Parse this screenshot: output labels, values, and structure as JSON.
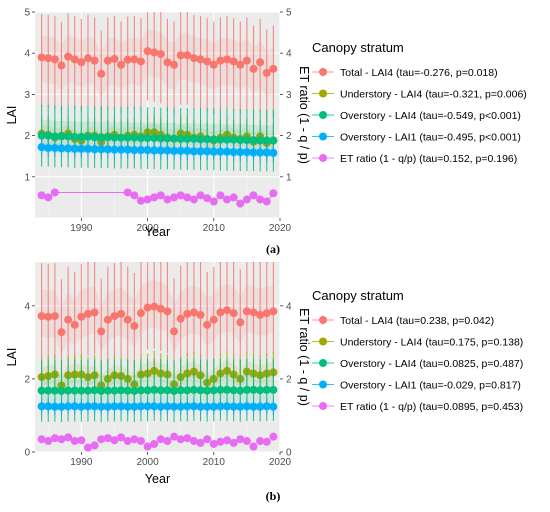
{
  "colors": {
    "total": "#f8766d",
    "understory": "#a3a500",
    "overstory_lai4": "#00bf7d",
    "overstory_lai1": "#00b0f6",
    "et_ratio": "#e76bf3",
    "panel_bg": "#ebebeb",
    "grid": "#ffffff"
  },
  "chart_data": [
    {
      "type": "scatter",
      "panel_label": "(a)",
      "xlabel": "Year",
      "ylabel": "LAI",
      "y2label": "ET ratio  (1 - q / p)",
      "xlim": [
        1983,
        2020
      ],
      "ylim": [
        0,
        5
      ],
      "xticks": [
        1990,
        2000,
        2010,
        2020
      ],
      "yticks": [
        1,
        2,
        3,
        4,
        5
      ],
      "y2ticks": [
        1,
        2,
        3,
        4,
        5
      ],
      "grid": true,
      "legend_title": "Canopy stratum",
      "legend_position": "right",
      "x": [
        1984,
        1985,
        1986,
        1987,
        1988,
        1989,
        1990,
        1991,
        1992,
        1993,
        1994,
        1995,
        1996,
        1997,
        1998,
        1999,
        2000,
        2001,
        2002,
        2003,
        2004,
        2005,
        2006,
        2007,
        2008,
        2009,
        2010,
        2011,
        2012,
        2013,
        2014,
        2015,
        2016,
        2017,
        2018,
        2019
      ],
      "series": [
        {
          "key": "total",
          "name": "Total - LAI4 (tau=-0.276, p=0.018)",
          "values": [
            3.9,
            3.88,
            3.85,
            3.7,
            3.92,
            3.85,
            3.78,
            3.88,
            3.82,
            3.5,
            3.82,
            3.86,
            3.72,
            3.84,
            3.85,
            3.8,
            4.05,
            4.02,
            3.98,
            3.78,
            3.72,
            3.95,
            3.95,
            3.88,
            3.85,
            3.8,
            3.72,
            3.82,
            3.85,
            3.8,
            3.72,
            3.82,
            3.62,
            3.78,
            3.52,
            3.62
          ],
          "spread_up": 1.05,
          "spread_down": 1.2
        },
        {
          "key": "understory",
          "name": "Understory - LAI4 (tau=-0.321, p=0.006)",
          "values": [
            2.05,
            2.02,
            1.95,
            2.0,
            2.05,
            1.92,
            1.88,
            2.0,
            2.0,
            1.85,
            1.98,
            2.02,
            1.95,
            2.0,
            2.02,
            1.98,
            2.08,
            2.08,
            2.02,
            1.95,
            1.92,
            2.05,
            2.02,
            1.95,
            1.98,
            1.92,
            1.88,
            1.95,
            2.02,
            1.95,
            1.92,
            1.98,
            1.85,
            1.98,
            1.82,
            1.88
          ],
          "spread_up": 0.42,
          "spread_down": 0.42
        },
        {
          "key": "overstory_lai4",
          "name": "Overstory - LAI4 (tau=-0.549, p<0.001)",
          "values": [
            2.0,
            2.0,
            1.98,
            1.98,
            1.98,
            1.97,
            1.97,
            1.97,
            1.96,
            1.96,
            1.96,
            1.95,
            1.95,
            1.95,
            1.95,
            1.94,
            1.94,
            1.94,
            1.93,
            1.93,
            1.93,
            1.92,
            1.92,
            1.92,
            1.91,
            1.91,
            1.91,
            1.9,
            1.9,
            1.9,
            1.89,
            1.89,
            1.89,
            1.88,
            1.88,
            1.88
          ],
          "spread_up": 0.75,
          "spread_down": 0.75
        },
        {
          "key": "overstory_lai1",
          "name": "Overstory - LAI1 (tau=-0.495, p<0.001)",
          "values": [
            1.72,
            1.7,
            1.7,
            1.69,
            1.69,
            1.68,
            1.68,
            1.68,
            1.67,
            1.67,
            1.67,
            1.66,
            1.66,
            1.66,
            1.65,
            1.65,
            1.65,
            1.64,
            1.64,
            1.64,
            1.63,
            1.63,
            1.63,
            1.62,
            1.62,
            1.62,
            1.61,
            1.61,
            1.61,
            1.6,
            1.6,
            1.6,
            1.59,
            1.59,
            1.59,
            1.58
          ],
          "spread_up": 0.22,
          "spread_down": 0.22
        },
        {
          "key": "et_ratio",
          "name": "ET ratio (1 - q/p) (tau=0.152, p=0.196)",
          "values": [
            0.55,
            0.5,
            0.62,
            null,
            null,
            null,
            null,
            null,
            null,
            null,
            null,
            null,
            null,
            0.62,
            0.55,
            0.42,
            0.45,
            0.5,
            0.55,
            0.45,
            0.5,
            0.55,
            0.5,
            0.45,
            0.55,
            0.48,
            0.4,
            0.55,
            0.45,
            0.5,
            0.35,
            0.45,
            0.55,
            0.45,
            0.4,
            0.6
          ],
          "et_line": true
        }
      ]
    },
    {
      "type": "scatter",
      "panel_label": "(b)",
      "xlabel": "Year",
      "ylabel": "LAI",
      "y2label": "ET ratio  (1 - q / p)",
      "xlim": [
        1983,
        2020
      ],
      "ylim": [
        0,
        5
      ],
      "xticks": [
        1990,
        2000,
        2010,
        2020
      ],
      "yticks": [
        0,
        2,
        4
      ],
      "y2ticks": [
        0,
        2,
        4
      ],
      "grid": true,
      "legend_title": "Canopy stratum",
      "legend_position": "right",
      "x": [
        1984,
        1985,
        1986,
        1987,
        1988,
        1989,
        1990,
        1991,
        1992,
        1993,
        1994,
        1995,
        1996,
        1997,
        1998,
        1999,
        2000,
        2001,
        2002,
        2003,
        2004,
        2005,
        2006,
        2007,
        2008,
        2009,
        2010,
        2011,
        2012,
        2013,
        2014,
        2015,
        2016,
        2017,
        2018,
        2019
      ],
      "series": [
        {
          "key": "total",
          "name": "Total - LAI4 (tau=0.238, p=0.042)",
          "values": [
            3.72,
            3.7,
            3.72,
            3.28,
            3.62,
            3.48,
            3.7,
            3.78,
            3.82,
            3.3,
            3.62,
            3.72,
            3.78,
            3.62,
            3.45,
            3.8,
            3.95,
            3.98,
            3.92,
            3.85,
            3.3,
            3.65,
            3.78,
            3.82,
            3.75,
            3.48,
            3.62,
            3.82,
            3.88,
            3.8,
            3.55,
            3.85,
            3.82,
            3.75,
            3.8,
            3.85
          ],
          "spread_up": 1.45,
          "spread_down": 1.15
        },
        {
          "key": "understory",
          "name": "Understory - LAI4 (tau=0.175, p=0.138)",
          "values": [
            2.05,
            2.08,
            2.12,
            1.82,
            2.1,
            2.12,
            2.12,
            2.05,
            2.1,
            1.82,
            2.0,
            2.1,
            2.08,
            2.0,
            1.85,
            2.12,
            2.15,
            2.22,
            2.15,
            2.12,
            1.85,
            2.05,
            2.15,
            2.2,
            2.1,
            1.9,
            2.0,
            2.15,
            2.22,
            2.12,
            2.0,
            2.2,
            2.15,
            2.1,
            2.15,
            2.18
          ],
          "spread_up": 0.55,
          "spread_down": 0.45
        },
        {
          "key": "overstory_lai4",
          "name": "Overstory - LAI4 (tau=0.0825, p=0.487)",
          "values": [
            1.68,
            1.68,
            1.68,
            1.67,
            1.68,
            1.68,
            1.68,
            1.68,
            1.69,
            1.67,
            1.68,
            1.68,
            1.69,
            1.68,
            1.67,
            1.69,
            1.69,
            1.7,
            1.69,
            1.69,
            1.67,
            1.69,
            1.69,
            1.7,
            1.69,
            1.68,
            1.69,
            1.7,
            1.7,
            1.69,
            1.68,
            1.7,
            1.7,
            1.69,
            1.7,
            1.7
          ],
          "spread_up": 0.85,
          "spread_down": 0.85
        },
        {
          "key": "overstory_lai1",
          "name": "Overstory - LAI1 (tau=-0.029, p=0.817)",
          "values": [
            1.25,
            1.25,
            1.24,
            1.24,
            1.25,
            1.25,
            1.24,
            1.25,
            1.25,
            1.24,
            1.24,
            1.25,
            1.25,
            1.24,
            1.24,
            1.25,
            1.25,
            1.25,
            1.24,
            1.25,
            1.24,
            1.24,
            1.25,
            1.25,
            1.24,
            1.24,
            1.24,
            1.25,
            1.25,
            1.24,
            1.24,
            1.25,
            1.24,
            1.24,
            1.25,
            1.24
          ],
          "spread_up": 0.22,
          "spread_down": 0.22
        },
        {
          "key": "et_ratio",
          "name": "ET ratio (1 - q/p) (tau=0.0895, p=0.453)",
          "values": [
            0.35,
            0.3,
            0.38,
            0.35,
            0.4,
            0.3,
            0.32,
            0.12,
            0.18,
            0.35,
            0.38,
            0.32,
            0.4,
            0.3,
            0.35,
            0.3,
            0.15,
            0.22,
            0.35,
            0.3,
            0.42,
            0.35,
            0.38,
            0.3,
            0.25,
            0.35,
            0.22,
            0.28,
            0.32,
            0.25,
            0.35,
            0.3,
            0.15,
            0.3,
            0.28,
            0.42
          ],
          "et_line": false
        }
      ]
    }
  ]
}
